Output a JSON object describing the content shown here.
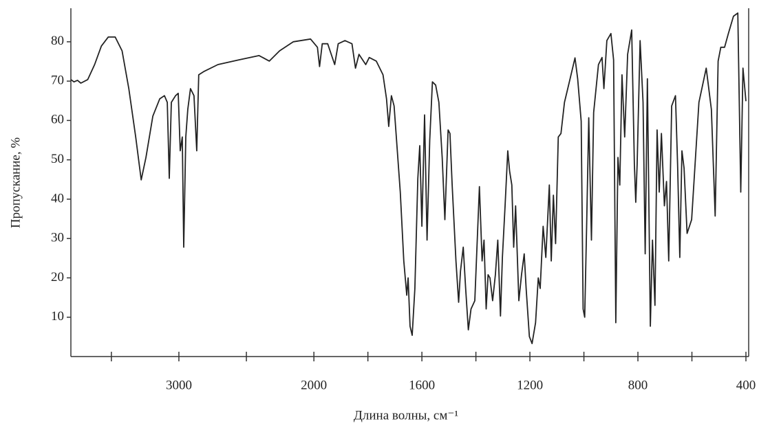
{
  "chart_data": {
    "type": "line",
    "xlabel": "Длина волны, см⁻¹",
    "ylabel": "Пропускание, %",
    "xlim": [
      3800,
      400
    ],
    "x_scale_break": 2000,
    "xticks": [
      3000,
      2000,
      1600,
      1200,
      800,
      400
    ],
    "xminor_ticks": [
      3500,
      2500,
      1800,
      1400,
      1000,
      600
    ],
    "ylim": [
      0,
      88
    ],
    "yticks": [
      10,
      20,
      30,
      40,
      50,
      60,
      70,
      80
    ],
    "color": "#222222",
    "x": [
      3800,
      3777,
      3751,
      3726,
      3675,
      3624,
      3574,
      3523,
      3472,
      3421,
      3371,
      3320,
      3279,
      3244,
      3193,
      3142,
      3107,
      3086,
      3071,
      3056,
      3025,
      3005,
      2990,
      2975,
      2964,
      2949,
      2934,
      2914,
      2888,
      2868,
      2853,
      2812,
      2711,
      2558,
      2406,
      2330,
      2254,
      2152,
      2025,
      1987,
      1979,
      1969,
      1949,
      1923,
      1910,
      1885,
      1859,
      1846,
      1833,
      1808,
      1795,
      1769,
      1744,
      1731,
      1723,
      1713,
      1703,
      1680,
      1667,
      1656,
      1651,
      1644,
      1636,
      1626,
      1615,
      1608,
      1600,
      1590,
      1581,
      1571,
      1561,
      1549,
      1537,
      1525,
      1515,
      1503,
      1496,
      1488,
      1474,
      1464,
      1457,
      1447,
      1438,
      1428,
      1418,
      1404,
      1387,
      1377,
      1370,
      1362,
      1355,
      1348,
      1338,
      1328,
      1319,
      1309,
      1302,
      1292,
      1282,
      1275,
      1267,
      1260,
      1253,
      1241,
      1231,
      1221,
      1214,
      1202,
      1192,
      1179,
      1169,
      1162,
      1151,
      1141,
      1128,
      1121,
      1113,
      1105,
      1095,
      1085,
      1072,
      1054,
      1033,
      1023,
      1010,
      1003,
      997,
      990,
      982,
      972,
      964,
      946,
      933,
      926,
      915,
      900,
      890,
      882,
      874,
      867,
      859,
      849,
      838,
      823,
      813,
      808,
      803,
      792,
      781,
      773,
      765,
      754,
      746,
      737,
      729,
      721,
      713,
      702,
      694,
      686,
      675,
      661,
      653,
      645,
      637,
      629,
      618,
      601,
      574,
      547,
      528,
      514,
      503,
      493,
      479,
      465,
      446,
      430,
      419,
      411,
      400
    ],
    "values": [
      70.4,
      69.8,
      70.2,
      69.5,
      70.4,
      74.2,
      78.9,
      81.2,
      81.2,
      77.7,
      68.1,
      55.8,
      44.9,
      50.6,
      61.1,
      65.5,
      66.3,
      64.6,
      45.3,
      64.6,
      66.3,
      66.9,
      52.3,
      55.8,
      27.8,
      55.8,
      62.8,
      68.1,
      66.3,
      52.3,
      71.6,
      72.5,
      74.2,
      75.4,
      76.5,
      75.1,
      77.7,
      80,
      80.7,
      78.6,
      73.7,
      79.5,
      79.5,
      74.2,
      79.5,
      80.3,
      79.5,
      73.3,
      76.8,
      74.2,
      76,
      75.1,
      71.6,
      65.5,
      58.5,
      66.3,
      63.7,
      41.8,
      24.3,
      15.6,
      20,
      7.7,
      5.4,
      17.3,
      45.3,
      53.6,
      33.1,
      61.4,
      29.6,
      55,
      69.8,
      69,
      64.6,
      50.6,
      34.8,
      57.6,
      56.7,
      43.6,
      24.3,
      13.8,
      21.7,
      27.8,
      17.3,
      6.8,
      12.1,
      14.2,
      43.2,
      24.3,
      29.6,
      12.1,
      20.8,
      20,
      14.2,
      20.8,
      29.6,
      10.3,
      25.2,
      38.3,
      52.3,
      47.1,
      43.6,
      27.8,
      38.3,
      14.2,
      20.8,
      26.1,
      17.3,
      5.1,
      3.3,
      8.6,
      20,
      17.3,
      33.1,
      25.2,
      43.6,
      24.3,
      41,
      28.7,
      55.8,
      56.7,
      64.6,
      69.8,
      75.9,
      70.6,
      59.8,
      12.1,
      10,
      33.1,
      60.7,
      29.6,
      62,
      74.2,
      76,
      68.1,
      80.3,
      82.1,
      75.4,
      8.6,
      50.6,
      43.6,
      71.6,
      55.8,
      76.8,
      83,
      48.8,
      39.2,
      48.8,
      80.3,
      64.6,
      26.1,
      70.6,
      7.7,
      29.6,
      13,
      57.6,
      41.8,
      56.7,
      38.3,
      44.5,
      24.3,
      63.7,
      66.3,
      48.8,
      25.2,
      52.3,
      47.9,
      31.3,
      34.8,
      64.6,
      73.3,
      62.8,
      35.7,
      75.1,
      78.6,
      78.6,
      82.1,
      86.5,
      87.3,
      41.8,
      73.3,
      64.9
    ]
  }
}
